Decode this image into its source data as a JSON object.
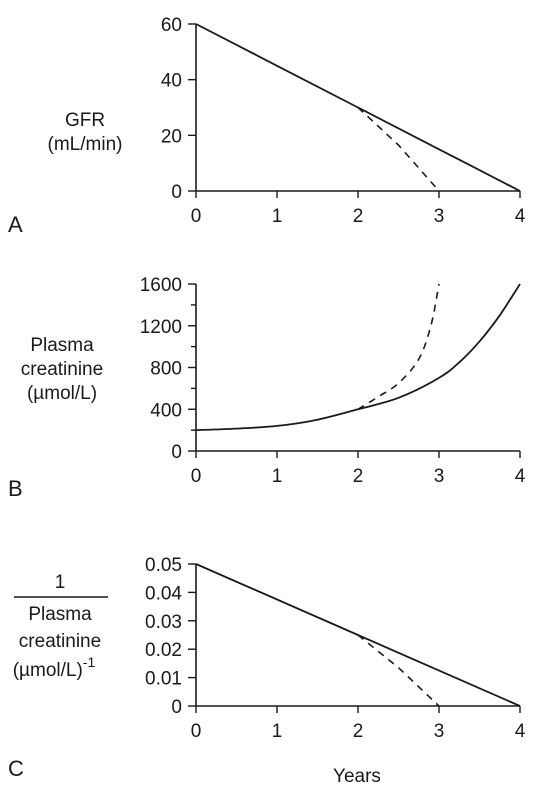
{
  "chart_data": [
    {
      "type": "line",
      "panel_label": "A",
      "ylabel_lines": [
        "GFR",
        "(mL/min)"
      ],
      "xlim": [
        0,
        4
      ],
      "ylim": [
        0,
        60
      ],
      "x_ticks": [
        0,
        1,
        2,
        3,
        4
      ],
      "y_ticks": [
        0,
        20,
        40,
        60
      ],
      "y_tick_labels": [
        "0",
        "20",
        "40",
        "60"
      ],
      "series": [
        {
          "style": "solid",
          "x": [
            0,
            1,
            2,
            3,
            4
          ],
          "y": [
            60,
            45,
            30,
            15,
            0
          ]
        },
        {
          "style": "dashed",
          "x": [
            2,
            2.5,
            3
          ],
          "y": [
            30,
            16.5,
            0
          ]
        }
      ]
    },
    {
      "type": "line",
      "panel_label": "B",
      "ylabel_lines": [
        "Plasma",
        "creatinine",
        "(µmol/L)"
      ],
      "xlim": [
        0,
        4
      ],
      "ylim": [
        0,
        1600
      ],
      "x_ticks": [
        0,
        1,
        2,
        3,
        4
      ],
      "y_ticks": [
        0,
        400,
        800,
        1200,
        1600
      ],
      "y_tick_labels": [
        "0",
        "400",
        "800",
        "1200",
        "1600"
      ],
      "y_minor_ticks": [
        200,
        600,
        1000,
        1400
      ],
      "series": [
        {
          "style": "solid",
          "x": [
            0,
            0.5,
            1,
            1.5,
            2,
            2.5,
            3,
            3.25,
            3.5,
            3.75,
            4
          ],
          "y": [
            200,
            215,
            240,
            300,
            400,
            510,
            700,
            850,
            1050,
            1300,
            1600
          ]
        },
        {
          "style": "dashed",
          "x": [
            2,
            2.25,
            2.5,
            2.75,
            2.9,
            3
          ],
          "y": [
            400,
            520,
            650,
            880,
            1200,
            1600
          ]
        }
      ]
    },
    {
      "type": "line",
      "panel_label": "C",
      "ylabel_lines": [
        "1",
        "Plasma",
        "creatinine",
        "(µmol/L)"
      ],
      "ylabel_superscript": "-1",
      "xlabel": "Years",
      "xlim": [
        0,
        4
      ],
      "ylim": [
        0,
        0.05
      ],
      "x_ticks": [
        0,
        1,
        2,
        3,
        4
      ],
      "y_ticks": [
        0,
        0.01,
        0.02,
        0.03,
        0.04,
        0.05
      ],
      "y_tick_labels": [
        "0",
        "0.01",
        "0.02",
        "0.03",
        "0.04",
        "0.05"
      ],
      "series": [
        {
          "style": "solid",
          "x": [
            0,
            2,
            4
          ],
          "y": [
            0.05,
            0.025,
            0
          ]
        },
        {
          "style": "dashed",
          "x": [
            2,
            2.5,
            3
          ],
          "y": [
            0.025,
            0.0135,
            0
          ]
        }
      ]
    }
  ]
}
